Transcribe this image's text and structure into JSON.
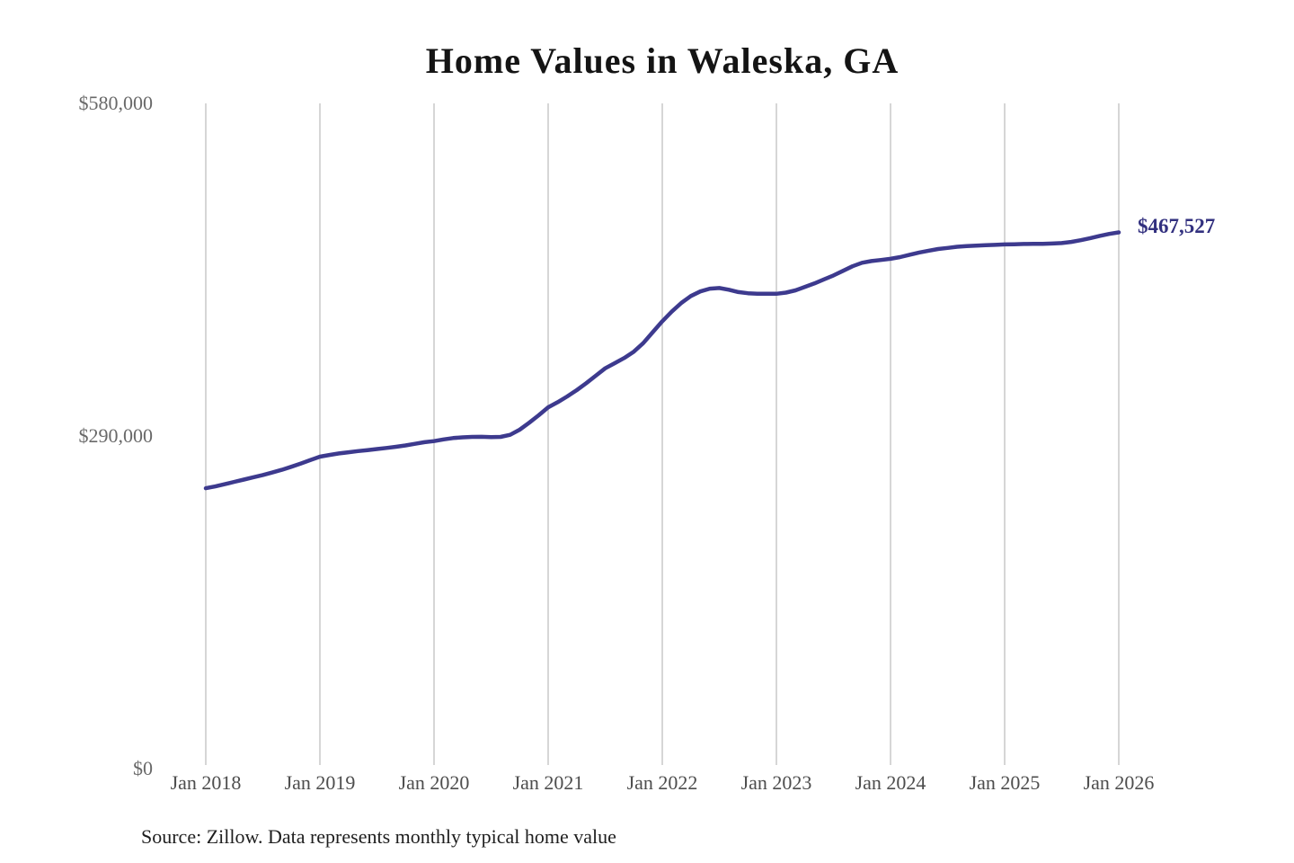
{
  "title": "Home Values in Waleska, GA",
  "source_note": "Source: Zillow. Data represents monthly typical home value",
  "colors": {
    "line": "#3d3a8e",
    "end_label": "#32307f",
    "gridline": "#c9c9c9",
    "y_tick_text": "#696969",
    "x_tick_text": "#4d4d4d",
    "title_text": "#141414",
    "source_text": "#1e1e1e",
    "background": "#ffffff"
  },
  "chart_data": {
    "type": "line",
    "title": "Home Values in Waleska, GA",
    "xlabel": "",
    "ylabel": "",
    "ylim": [
      0,
      580000
    ],
    "grid": "vertical-only",
    "legend": "none",
    "x_tick_labels": [
      "Jan 2018",
      "Jan 2019",
      "Jan 2020",
      "Jan 2021",
      "Jan 2022",
      "Jan 2023",
      "Jan 2024",
      "Jan 2025",
      "Jan 2026"
    ],
    "y_ticks": [
      {
        "label": "$0",
        "value": 0
      },
      {
        "label": "$290,000",
        "value": 290000
      },
      {
        "label": "$580,000",
        "value": 580000
      }
    ],
    "series": [
      {
        "name": "Monthly typical home value",
        "x_range": "Jan 2018 to Jan 2026, monthly",
        "final_value": 467527,
        "final_value_label": "$467,527",
        "values": [
          244500,
          246000,
          248000,
          250000,
          252000,
          254000,
          256000,
          258200,
          260500,
          263200,
          266000,
          269000,
          272000,
          273500,
          274800,
          275800,
          276800,
          277700,
          278600,
          279600,
          280600,
          281800,
          283200,
          284600,
          285500,
          287000,
          288200,
          288800,
          289200,
          289300,
          289000,
          289200,
          291000,
          295500,
          301500,
          308000,
          315000,
          319500,
          324500,
          330000,
          336000,
          342500,
          349000,
          353500,
          358000,
          363500,
          371000,
          380500,
          390000,
          398500,
          406000,
          412000,
          416000,
          418500,
          419000,
          417500,
          415500,
          414500,
          414000,
          414000,
          414000,
          415000,
          417000,
          420000,
          423000,
          426500,
          430000,
          434000,
          438000,
          441000,
          442500,
          443500,
          444500,
          446000,
          448000,
          450000,
          451500,
          453000,
          454000,
          455000,
          455500,
          456000,
          456300,
          456600,
          457000,
          457200,
          457400,
          457500,
          457600,
          457800,
          458200,
          459200,
          460700,
          462500,
          464500,
          466200,
          467527
        ]
      }
    ]
  }
}
